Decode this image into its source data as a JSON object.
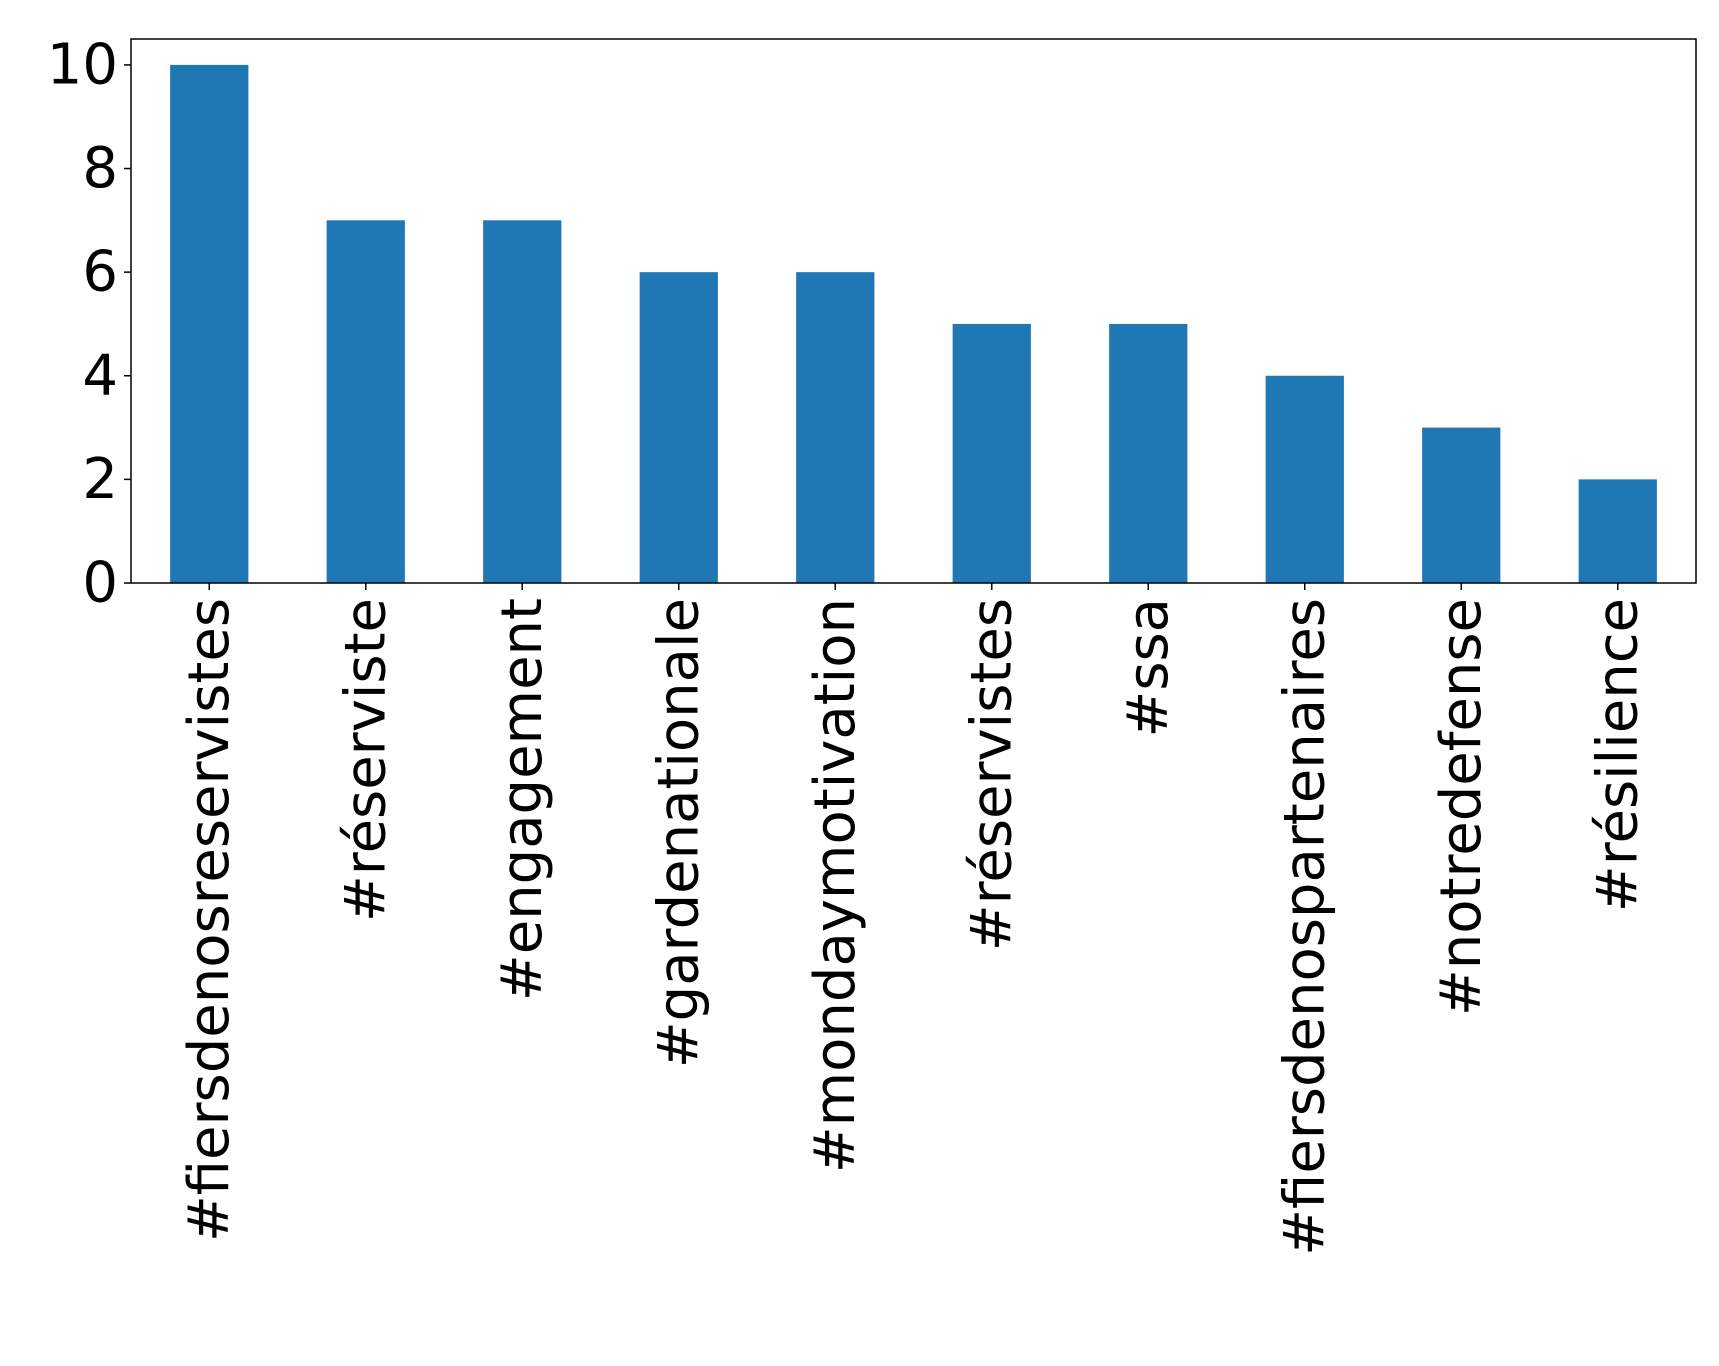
{
  "colors": {
    "bar": "#1f77b4",
    "axis": "#000000",
    "background": "#ffffff"
  },
  "chart_data": {
    "type": "bar",
    "categories": [
      "#fiersdenosreservistes",
      "#réserviste",
      "#engagement",
      "#gardenationale",
      "#mondaymotivation",
      "#réservistes",
      "#ssa",
      "#fiersdenospartenaires",
      "#notredefense",
      "#résilience"
    ],
    "values": [
      10,
      7,
      7,
      6,
      6,
      5,
      5,
      4,
      3,
      2
    ],
    "title": "",
    "xlabel": "",
    "ylabel": "",
    "ylim": [
      0,
      10.5
    ],
    "yticks": [
      0,
      2,
      4,
      6,
      8,
      10
    ],
    "grid": false,
    "legend": "none"
  }
}
